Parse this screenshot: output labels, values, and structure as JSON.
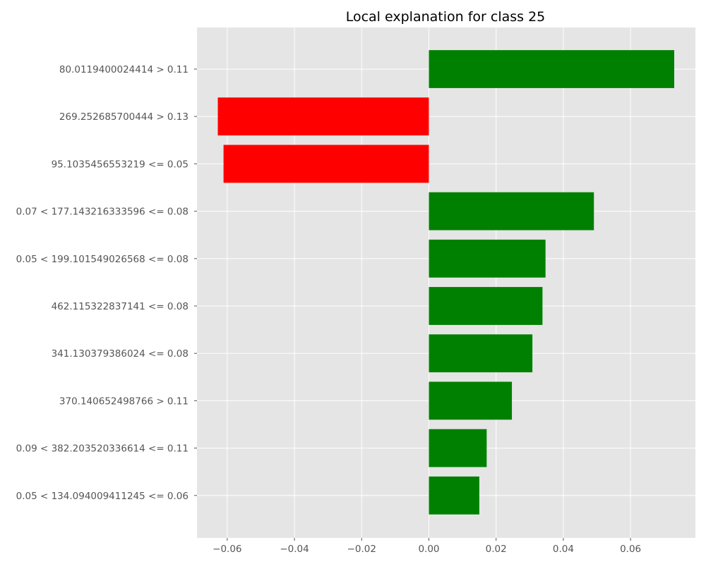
{
  "chart_data": {
    "type": "bar",
    "orientation": "horizontal",
    "title": "Local explanation for class 25",
    "xlabel": "",
    "ylabel": "",
    "categories": [
      "80.0119400024414 > 0.11",
      "269.252685700444 > 0.13",
      "95.1035456553219 <= 0.05",
      "0.07 < 177.143216333596 <= 0.08",
      "0.05 < 199.101549026568 <= 0.08",
      "462.115322837141 <= 0.08",
      "341.130379386024 <= 0.08",
      "370.140652498766 > 0.11",
      "0.09 < 382.203520336614 <= 0.11",
      "0.05 < 134.094009411245 <= 0.06"
    ],
    "values": [
      0.073,
      -0.0628,
      -0.0611,
      0.0491,
      0.0347,
      0.0338,
      0.0308,
      0.0247,
      0.0172,
      0.015
    ],
    "xlim": [
      -0.069,
      0.0793
    ],
    "xticks": [
      -0.06,
      -0.04,
      -0.02,
      0.0,
      0.02,
      0.04,
      0.06
    ],
    "xtick_labels": [
      "−0.06",
      "−0.04",
      "−0.02",
      "0.00",
      "0.02",
      "0.04",
      "0.06"
    ],
    "grid": true,
    "colors": {
      "positive": "#008000",
      "negative": "#ff0000",
      "background": "#e5e5e5",
      "grid": "#ffffff",
      "tick_text": "#555555"
    }
  }
}
